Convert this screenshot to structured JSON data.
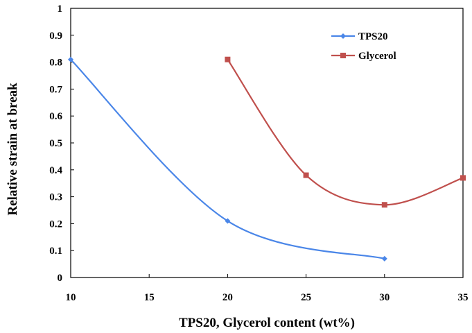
{
  "chart_data": {
    "type": "line",
    "title": "",
    "xlabel": "TPS20, Glycerol content (wt%)",
    "ylabel": "Relative strain at break",
    "xlim": [
      10,
      35
    ],
    "ylim": [
      0,
      1
    ],
    "xticks": [
      "10",
      "15",
      "20",
      "25",
      "30",
      "35"
    ],
    "yticks": [
      "0",
      "0.1",
      "0.2",
      "0.3",
      "0.4",
      "0.5",
      "0.6",
      "0.7",
      "0.8",
      "0.9",
      "1"
    ],
    "grid": false,
    "legend_position": "top-right",
    "smooth": true,
    "series": [
      {
        "name": "TPS20",
        "color": "#4a86e8",
        "marker": "diamond",
        "x": [
          10,
          20,
          30
        ],
        "y": [
          0.81,
          0.21,
          0.07
        ]
      },
      {
        "name": "Glycerol",
        "color": "#c0504d",
        "marker": "square",
        "x": [
          20,
          25,
          30,
          35
        ],
        "y": [
          0.81,
          0.38,
          0.27,
          0.37
        ]
      }
    ]
  }
}
